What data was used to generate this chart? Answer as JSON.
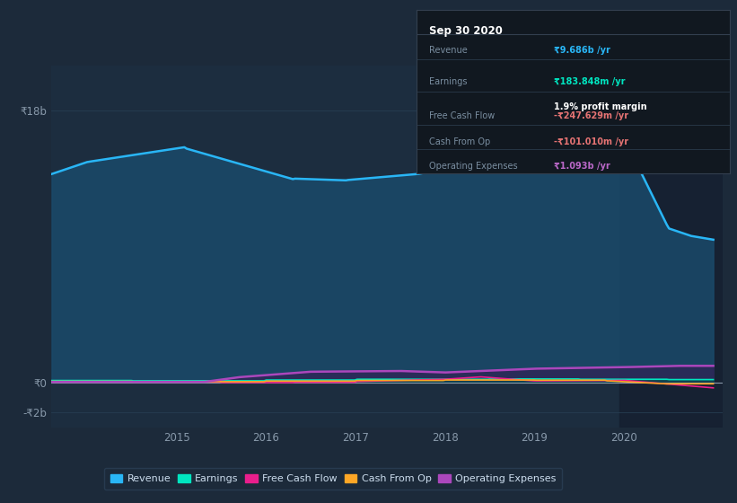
{
  "background_color": "#1c2a3a",
  "plot_bg_color": "#1c2d3f",
  "grid_color": "#263d52",
  "zero_line_color": "#8899aa",
  "ytick_labels": [
    "₹18b",
    "₹0",
    "-₹2b"
  ],
  "yticks": [
    18000000000,
    0,
    -2000000000
  ],
  "ylim": [
    -3000000000,
    21000000000
  ],
  "xlim_left": 2013.6,
  "xlim_right": 2021.1,
  "xtick_positions": [
    2015,
    2016,
    2017,
    2018,
    2019,
    2020
  ],
  "xtick_labels": [
    "2015",
    "2016",
    "2017",
    "2018",
    "2019",
    "2020"
  ],
  "revenue_color": "#29b6f6",
  "revenue_fill_color": "#1a4a6a",
  "earnings_color": "#00e5c0",
  "fcf_color": "#e91e8c",
  "cashop_color": "#ffa726",
  "opex_color": "#ab47bc",
  "right_panel_color": "#16222e",
  "legend_items": [
    {
      "label": "Revenue",
      "color": "#29b6f6"
    },
    {
      "label": "Earnings",
      "color": "#00e5c0"
    },
    {
      "label": "Free Cash Flow",
      "color": "#e91e8c"
    },
    {
      "label": "Cash From Op",
      "color": "#ffa726"
    },
    {
      "label": "Operating Expenses",
      "color": "#ab47bc"
    }
  ],
  "infobox": {
    "title": "Sep 30 2020",
    "rows": [
      {
        "label": "Revenue",
        "value": "₹9.686b /yr",
        "value_color": "#29b6f6",
        "extra": null
      },
      {
        "label": "Earnings",
        "value": "₹183.848m /yr",
        "value_color": "#00e5c0",
        "extra": "1.9% profit margin"
      },
      {
        "label": "Free Cash Flow",
        "value": "-₹247.629m /yr",
        "value_color": "#e57373",
        "extra": null
      },
      {
        "label": "Cash From Op",
        "value": "-₹101.010m /yr",
        "value_color": "#e57373",
        "extra": null
      },
      {
        "label": "Operating Expenses",
        "value": "₹1.093b /yr",
        "value_color": "#ba68c8",
        "extra": null
      }
    ]
  }
}
